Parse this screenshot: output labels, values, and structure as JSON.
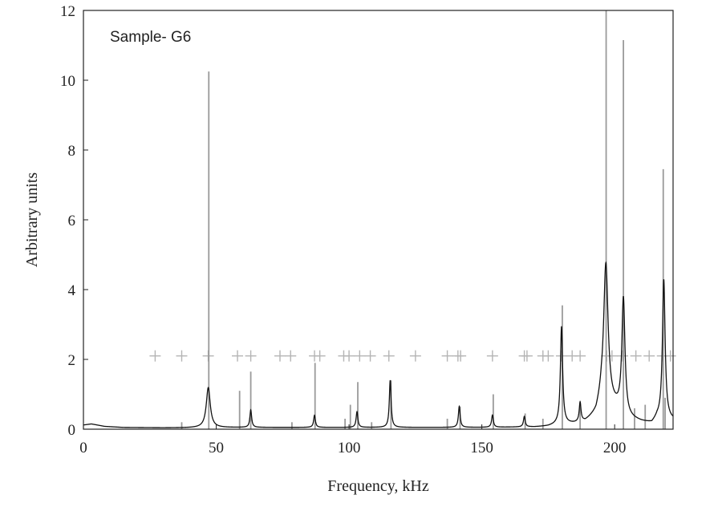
{
  "chart_data": {
    "type": "line",
    "annotation": "Sample- G6",
    "xlabel": "Frequency, kHz",
    "ylabel": "Arbitrary units",
    "xlim": [
      0,
      222
    ],
    "ylim": [
      0,
      12
    ],
    "xticks": [
      0,
      50,
      100,
      150,
      200
    ],
    "yticks": [
      0,
      2,
      4,
      6,
      8,
      10,
      12
    ],
    "grid": false,
    "colors": {
      "measured": "#111111",
      "reference": "#9a9a9a",
      "markers": "#b4b4b4"
    },
    "series": [
      {
        "style": "black-line",
        "baseline": [
          [
            0,
            0.12
          ],
          [
            3,
            0.15
          ],
          [
            8,
            0.08
          ],
          [
            15,
            0.05
          ],
          [
            30,
            0.04
          ],
          [
            40,
            0.04
          ],
          [
            60,
            0.05
          ],
          [
            90,
            0.05
          ],
          [
            120,
            0.05
          ],
          [
            150,
            0.05
          ],
          [
            170,
            0.06
          ],
          [
            175,
            0.08
          ],
          [
            178,
            0.12
          ],
          [
            185,
            0.15
          ],
          [
            189,
            0.2
          ],
          [
            193,
            0.4
          ],
          [
            195,
            0.8
          ],
          [
            200,
            0.6
          ],
          [
            202,
            0.5
          ],
          [
            205,
            0.3
          ],
          [
            210,
            0.2
          ],
          [
            214,
            0.15
          ],
          [
            216,
            0.3
          ],
          [
            222,
            0.25
          ]
        ],
        "peaks": [
          {
            "x": 47.0,
            "y": 1.15,
            "w": 0.9
          },
          {
            "x": 63.0,
            "y": 0.5,
            "w": 0.4
          },
          {
            "x": 87.0,
            "y": 0.35,
            "w": 0.4
          },
          {
            "x": 103.0,
            "y": 0.45,
            "w": 0.4
          },
          {
            "x": 115.5,
            "y": 1.35,
            "w": 0.4
          },
          {
            "x": 141.5,
            "y": 0.6,
            "w": 0.4
          },
          {
            "x": 154.0,
            "y": 0.35,
            "w": 0.4
          },
          {
            "x": 166.0,
            "y": 0.3,
            "w": 0.4
          },
          {
            "x": 180.0,
            "y": 2.8,
            "w": 0.5
          },
          {
            "x": 187.0,
            "y": 0.55,
            "w": 0.4
          },
          {
            "x": 196.7,
            "y": 4.0,
            "w": 1.0
          },
          {
            "x": 203.3,
            "y": 3.3,
            "w": 0.7
          },
          {
            "x": 218.5,
            "y": 4.0,
            "w": 0.6
          }
        ]
      },
      {
        "style": "gray-spikes",
        "points": [
          [
            37,
            0.2
          ],
          [
            47.2,
            10.25
          ],
          [
            58.8,
            1.1
          ],
          [
            63.0,
            1.65
          ],
          [
            78.5,
            0.2
          ],
          [
            87.2,
            1.9
          ],
          [
            98.5,
            0.3
          ],
          [
            100.5,
            0.7
          ],
          [
            103.3,
            1.35
          ],
          [
            108.5,
            0.2
          ],
          [
            115.8,
            1.4
          ],
          [
            137.0,
            0.3
          ],
          [
            141.8,
            0.65
          ],
          [
            154.3,
            1.0
          ],
          [
            166.3,
            0.45
          ],
          [
            173.0,
            0.3
          ],
          [
            180.3,
            3.55
          ],
          [
            187.0,
            0.7
          ],
          [
            196.8,
            12.0
          ],
          [
            203.3,
            11.15
          ],
          [
            207.5,
            0.6
          ],
          [
            211.5,
            0.7
          ],
          [
            218.3,
            7.45
          ],
          [
            219.0,
            0.9
          ]
        ]
      },
      {
        "style": "plus-markers",
        "y": 2.1,
        "x": [
          27,
          37,
          47,
          58,
          63,
          74,
          78,
          87,
          89,
          98,
          100,
          104,
          108,
          115,
          125,
          137,
          141,
          142,
          154,
          166,
          167,
          173,
          175,
          180,
          184,
          187,
          197,
          199,
          203,
          208,
          213,
          218,
          221
        ]
      }
    ]
  }
}
